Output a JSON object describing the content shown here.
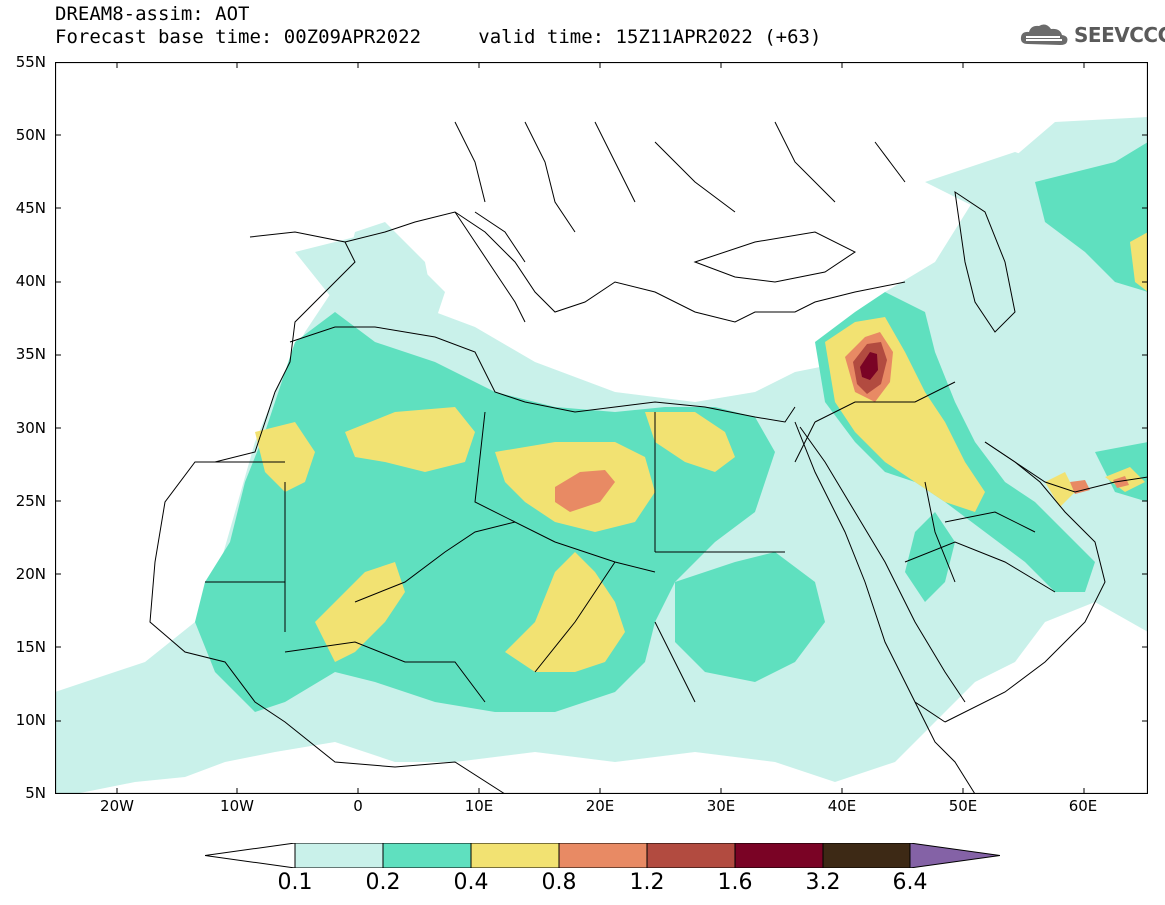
{
  "header": {
    "model_title": "DREAM8-assim: AOT",
    "base_time_label": "Forecast base time: 00Z09APR2022",
    "valid_time_label": "valid time: 15Z11APR2022 (+63)"
  },
  "logo": {
    "text": "SEEVCCC",
    "icon": "cloud-logo-icon"
  },
  "map": {
    "lat_labels": [
      "55N",
      "50N",
      "45N",
      "40N",
      "35N",
      "30N",
      "25N",
      "20N",
      "15N",
      "10N",
      "5N"
    ],
    "lon_labels": [
      "20W",
      "10W",
      "0",
      "10E",
      "20E",
      "30E",
      "40E",
      "50E",
      "60E"
    ],
    "variable": "AOT"
  },
  "colorbar": {
    "labels": [
      "0.1",
      "0.2",
      "0.4",
      "0.8",
      "1.2",
      "1.6",
      "3.2",
      "6.4"
    ],
    "colors": [
      "#ffffff",
      "#c9f1ea",
      "#5fe0bf",
      "#f2e272",
      "#e88a64",
      "#b24b40",
      "#7a0325",
      "#3d2915",
      "#8462a6"
    ]
  }
}
